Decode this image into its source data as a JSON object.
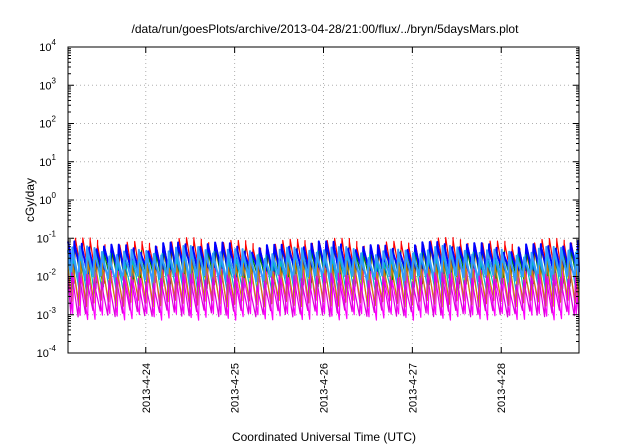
{
  "chart_data": {
    "type": "line",
    "title": "/data/run/goesPlots/archive/2013-04-28/21:00/flux/../bryn/5daysMars.plot",
    "xlabel": "Coordinated Universal Time (UTC)",
    "ylabel": "cGy/day",
    "yscale": "log",
    "ylim": [
      0.0001,
      10000
    ],
    "xlim": [
      "2013-04-23T03:00",
      "2013-04-28T21:00"
    ],
    "grid": true,
    "legend": "none",
    "x_ticks": [
      "2013-4-24",
      "2013-4-25",
      "2013-4-26",
      "2013-4-27",
      "2013-4-28"
    ],
    "y_ticks": [
      {
        "base": "10",
        "exp": "4"
      },
      {
        "base": "10",
        "exp": "3"
      },
      {
        "base": "10",
        "exp": "2"
      },
      {
        "base": "10",
        "exp": "1"
      },
      {
        "base": "10",
        "exp": "0"
      },
      {
        "base": "10",
        "exp": "-1"
      },
      {
        "base": "10",
        "exp": "-2"
      },
      {
        "base": "10",
        "exp": "-3"
      },
      {
        "base": "10",
        "exp": "-4"
      }
    ],
    "pattern": {
      "description_source": "sawtooth, ~12 cycles per day",
      "cycles_per_day": 12
    },
    "series": [
      {
        "color": "#ff0000",
        "peak": 0.075,
        "trough": 0.008
      },
      {
        "color": "#008000",
        "peak": 0.05,
        "trough": 0.006
      },
      {
        "color": "#0000ff",
        "peak": 0.06,
        "trough": 0.012
      },
      {
        "color": "#ff00ff",
        "peak": 0.012,
        "trough": 0.0009
      },
      {
        "color": "#00bfbf",
        "peak": 0.035,
        "trough": 0.004
      },
      {
        "color": "#cc8800",
        "peak": 0.02,
        "trough": 0.002
      },
      {
        "color": "#3399ff",
        "peak": 0.045,
        "trough": 0.009
      },
      {
        "color": "#dd00dd",
        "peak": 0.009,
        "trough": 0.0011
      }
    ]
  }
}
